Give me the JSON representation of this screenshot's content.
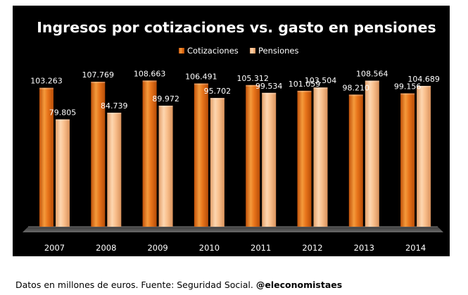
{
  "chart_data": {
    "type": "bar",
    "title": "Ingresos por cotizaciones vs. gasto en pensiones",
    "categories": [
      "2007",
      "2008",
      "2009",
      "2010",
      "2011",
      "2012",
      "2013",
      "2014"
    ],
    "series": [
      {
        "name": "Cotizaciones",
        "values": [
          103.263,
          107.769,
          108.663,
          106.491,
          105.312,
          101.059,
          98.21,
          99.156
        ],
        "labels": [
          "103.263",
          "107.769",
          "108.663",
          "106.491",
          "105.312",
          "101.059",
          "98.210",
          "99.156"
        ],
        "color": "#e8741a"
      },
      {
        "name": "Pensiones",
        "values": [
          79.805,
          84.739,
          89.972,
          95.702,
          99.534,
          103.504,
          108.564,
          104.689
        ],
        "labels": [
          "79.805",
          "84.739",
          "89.972",
          "95.702",
          "99.534",
          "103.504",
          "108.564",
          "104.689"
        ],
        "color": "#f9bf8c"
      }
    ],
    "ylim": [
      0,
      112
    ],
    "grid": false,
    "legend": "top-center",
    "colors": {
      "background": "#000000",
      "plot_floor": "#5a5a5a",
      "text": "#ffffff"
    }
  },
  "footer": {
    "note": "Datos en millones de euros. Fuente: Seguridad Social.",
    "handle": "@eleconomistaes"
  }
}
